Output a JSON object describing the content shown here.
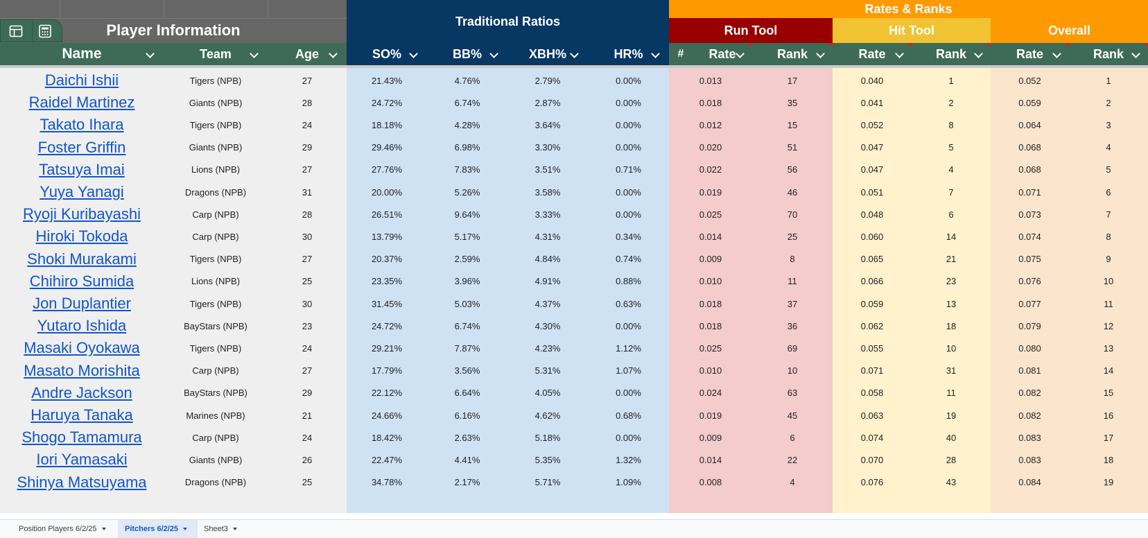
{
  "header": {
    "player_info": "Player Information",
    "traditional_ratios": "Traditional Ratios",
    "rates_ranks": "Rates & Ranks",
    "run_tool": "Run Tool",
    "hit_tool": "Hit Tool",
    "overall": "Overall"
  },
  "columns": {
    "name": "Name",
    "team": "Team",
    "age": "Age",
    "so": "SO%",
    "bb": "BB%",
    "xbh": "XBH%",
    "hr": "HR%",
    "hash": "#",
    "run_rate": "Rate",
    "run_rank": "Rank",
    "hit_rate": "Rate",
    "hit_rank": "Rank",
    "ov_rate": "Rate",
    "ov_rank": "Rank"
  },
  "colors": {
    "player_info_header": "#666666",
    "column_header_green": "#3d6b57",
    "traditional_header": "#073763",
    "rates_header": "#ff9900",
    "run_tool_header": "#990000",
    "hit_tool_header": "#f1c232",
    "traditional_body": "#cfe2f3",
    "run_body": "#f4cccc",
    "hit_body": "#fff2cc",
    "overall_body": "#fce5cd",
    "info_body": "#efefef"
  },
  "rows": [
    [
      "Daichi Ishii",
      "Tigers (NPB)",
      "27",
      "21.43%",
      "4.76%",
      "2.79%",
      "0.00%",
      "0.013",
      "17",
      "0.040",
      "1",
      "0.052",
      "1"
    ],
    [
      "Raidel Martinez",
      "Giants (NPB)",
      "28",
      "24.72%",
      "6.74%",
      "2.87%",
      "0.00%",
      "0.018",
      "35",
      "0.041",
      "2",
      "0.059",
      "2"
    ],
    [
      "Takato Ihara",
      "Tigers (NPB)",
      "24",
      "18.18%",
      "4.28%",
      "3.64%",
      "0.00%",
      "0.012",
      "15",
      "0.052",
      "8",
      "0.064",
      "3"
    ],
    [
      "Foster Griffin",
      "Giants (NPB)",
      "29",
      "29.46%",
      "6.98%",
      "3.30%",
      "0.00%",
      "0.020",
      "51",
      "0.047",
      "5",
      "0.068",
      "4"
    ],
    [
      "Tatsuya Imai",
      "Lions (NPB)",
      "27",
      "27.76%",
      "7.83%",
      "3.51%",
      "0.71%",
      "0.022",
      "56",
      "0.047",
      "4",
      "0.068",
      "5"
    ],
    [
      "Yuya Yanagi",
      "Dragons (NPB)",
      "31",
      "20.00%",
      "5.26%",
      "3.58%",
      "0.00%",
      "0.019",
      "46",
      "0.051",
      "7",
      "0.071",
      "6"
    ],
    [
      "Ryoji Kuribayashi",
      "Carp (NPB)",
      "28",
      "26.51%",
      "9.64%",
      "3.33%",
      "0.00%",
      "0.025",
      "70",
      "0.048",
      "6",
      "0.073",
      "7"
    ],
    [
      "Hiroki Tokoda",
      "Carp (NPB)",
      "30",
      "13.79%",
      "5.17%",
      "4.31%",
      "0.34%",
      "0.014",
      "25",
      "0.060",
      "14",
      "0.074",
      "8"
    ],
    [
      "Shoki Murakami",
      "Tigers (NPB)",
      "27",
      "20.37%",
      "2.59%",
      "4.84%",
      "0.74%",
      "0.009",
      "8",
      "0.065",
      "21",
      "0.075",
      "9"
    ],
    [
      "Chihiro Sumida",
      "Lions (NPB)",
      "25",
      "23.35%",
      "3.96%",
      "4.91%",
      "0.88%",
      "0.010",
      "11",
      "0.066",
      "23",
      "0.076",
      "10"
    ],
    [
      "Jon Duplantier",
      "Tigers (NPB)",
      "30",
      "31.45%",
      "5.03%",
      "4.37%",
      "0.63%",
      "0.018",
      "37",
      "0.059",
      "13",
      "0.077",
      "11"
    ],
    [
      "Yutaro Ishida",
      "BayStars (NPB)",
      "23",
      "24.72%",
      "6.74%",
      "4.30%",
      "0.00%",
      "0.018",
      "36",
      "0.062",
      "18",
      "0.079",
      "12"
    ],
    [
      "Masaki Oyokawa",
      "Tigers (NPB)",
      "24",
      "29.21%",
      "7.87%",
      "4.23%",
      "1.12%",
      "0.025",
      "69",
      "0.055",
      "10",
      "0.080",
      "13"
    ],
    [
      "Masato Morishita",
      "Carp (NPB)",
      "27",
      "17.79%",
      "3.56%",
      "5.31%",
      "1.07%",
      "0.010",
      "10",
      "0.071",
      "31",
      "0.081",
      "14"
    ],
    [
      "Andre Jackson",
      "BayStars (NPB)",
      "29",
      "22.12%",
      "6.64%",
      "4.05%",
      "0.00%",
      "0.024",
      "63",
      "0.058",
      "11",
      "0.082",
      "15"
    ],
    [
      "Haruya Tanaka",
      "Marines (NPB)",
      "21",
      "24.66%",
      "6.16%",
      "4.62%",
      "0.68%",
      "0.019",
      "45",
      "0.063",
      "19",
      "0.082",
      "16"
    ],
    [
      "Shogo Tamamura",
      "Carp (NPB)",
      "24",
      "18.42%",
      "2.63%",
      "5.18%",
      "0.00%",
      "0.009",
      "6",
      "0.074",
      "40",
      "0.083",
      "17"
    ],
    [
      "Iori Yamasaki",
      "Giants (NPB)",
      "26",
      "22.47%",
      "4.41%",
      "5.35%",
      "1.32%",
      "0.014",
      "22",
      "0.070",
      "28",
      "0.083",
      "18"
    ],
    [
      "Shinya Matsuyama",
      "Dragons (NPB)",
      "25",
      "34.78%",
      "2.17%",
      "5.71%",
      "1.09%",
      "0.008",
      "4",
      "0.076",
      "43",
      "0.084",
      "19"
    ]
  ],
  "tabs": [
    {
      "label": "Position Players 6/2/25",
      "active": false
    },
    {
      "label": "Pitchers 6/2/25",
      "active": true
    },
    {
      "label": "Sheet3",
      "active": false
    }
  ]
}
